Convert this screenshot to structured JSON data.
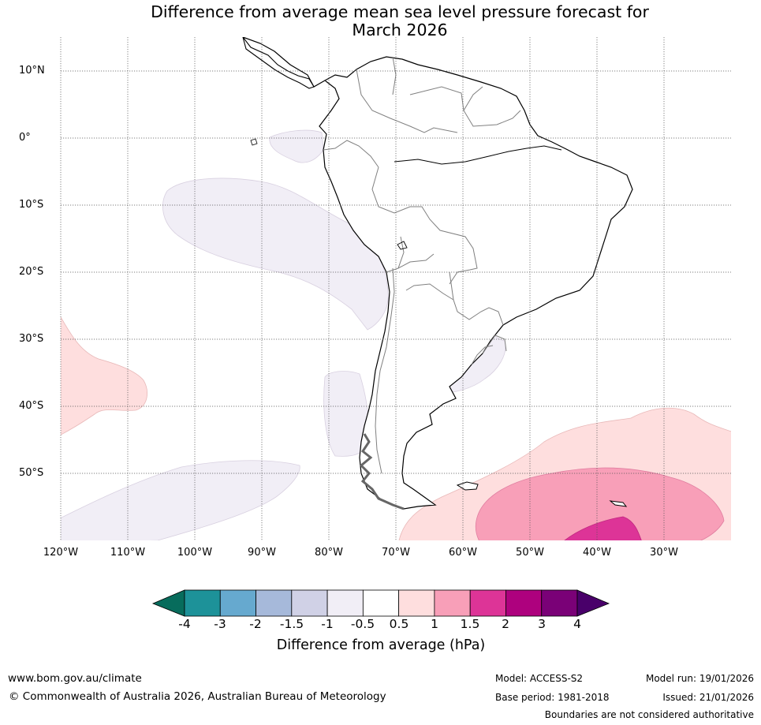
{
  "title_line1": "Difference from average mean sea level pressure forecast for",
  "title_line2": "March 2026",
  "lat_labels": [
    "10°N",
    "0°",
    "10°S",
    "20°S",
    "30°S",
    "40°S",
    "50°S"
  ],
  "lon_labels": [
    "120°W",
    "110°W",
    "100°W",
    "90°W",
    "80°W",
    "70°W",
    "60°W",
    "50°W",
    "40°W",
    "30°W"
  ],
  "colorbar": {
    "label": "Difference from average (hPa)",
    "ticks": [
      "-4",
      "-3",
      "-2",
      "-1.5",
      "-1",
      "-0.5",
      "0.5",
      "1",
      "1.5",
      "2",
      "3",
      "4"
    ],
    "colors": [
      "#1d9299",
      "#66a9cf",
      "#a6b9da",
      "#d0d1e6",
      "#f1eef6",
      "#ffffff",
      "#fedede",
      "#f89fb8",
      "#dd3497",
      "#ae017e",
      "#7a0177"
    ],
    "under_color": "#076c5c",
    "over_color": "#49006a"
  },
  "footer": {
    "website": "www.bom.gov.au/climate",
    "copyright": "© Commonwealth of Australia 2026, Australian Bureau of Meteorology",
    "model": "Model: ACCESS-S2",
    "base_period": "Base period: 1981-2018",
    "model_run": "Model run: 19/01/2026",
    "issued": "Issued: 21/01/2026",
    "boundaries_note": "Boundaries are not considered authoritative"
  }
}
